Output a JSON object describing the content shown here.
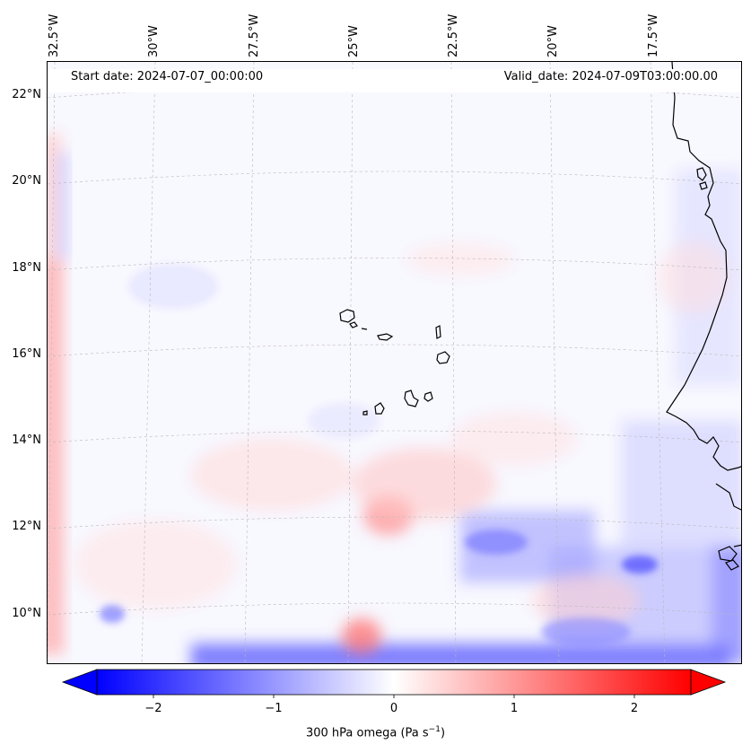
{
  "map": {
    "start_date": "Start date: 2024-07-07_00:00:00",
    "valid_date": "Valid_date: 2024-07-09T03:00:00.00",
    "longitude_labels": [
      "32.5°W",
      "30°W",
      "27.5°W",
      "25°W",
      "22.5°W",
      "20°W",
      "17.5°W"
    ],
    "latitude_labels": [
      "22°N",
      "20°N",
      "18°N",
      "16°N",
      "14°N",
      "12°N",
      "10°N"
    ]
  },
  "colorbar": {
    "ticks": [
      "−2",
      "−1",
      "0",
      "1",
      "2"
    ],
    "min": -2.5,
    "max": 2.5,
    "label": "300 hPa omega (Pa s",
    "label_superscript": "−1",
    "label_suffix": ")",
    "colormap": "bwr",
    "negative_color": "#0000ff",
    "zero_color": "#ffffff",
    "positive_color": "#ff0000"
  }
}
